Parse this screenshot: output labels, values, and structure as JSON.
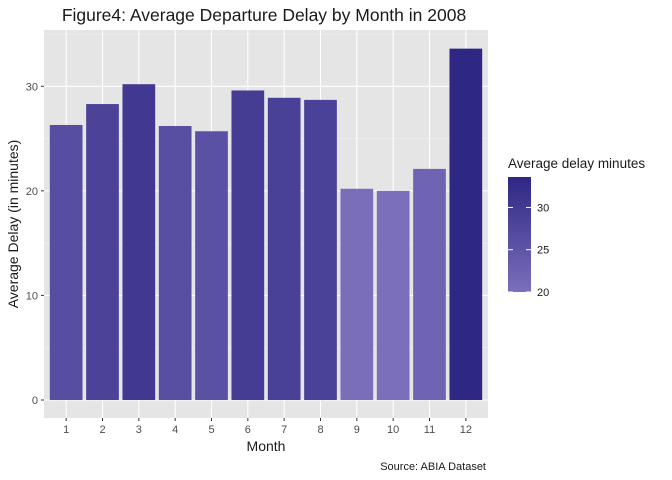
{
  "chart_data": {
    "type": "bar",
    "title": "Figure4: Average Departure Delay by Month in 2008",
    "xlabel": "Month",
    "ylabel": "Average Delay (in minutes)",
    "caption": "Source: ABIA Dataset",
    "categories": [
      "1",
      "2",
      "3",
      "4",
      "5",
      "6",
      "7",
      "8",
      "9",
      "10",
      "11",
      "12"
    ],
    "values": [
      26.3,
      28.3,
      30.2,
      26.2,
      25.7,
      29.6,
      28.9,
      28.7,
      20.2,
      20.0,
      22.1,
      33.6
    ],
    "ylim": [
      0,
      35
    ],
    "y_ticks": [
      0,
      10,
      20,
      30
    ],
    "grid": true,
    "legend": {
      "title": "Average delay minutes",
      "position": "right",
      "type": "colorbar",
      "ticks": [
        20,
        25,
        30
      ],
      "range": [
        20.0,
        33.6
      ],
      "low_color": "#7b6fbc",
      "high_color": "#2e2783"
    },
    "colors": {
      "panel_background": "#e5e5e5",
      "grid_major": "#ffffff",
      "text": "#1a1a1a",
      "tick_text": "#4d4d4d"
    }
  }
}
